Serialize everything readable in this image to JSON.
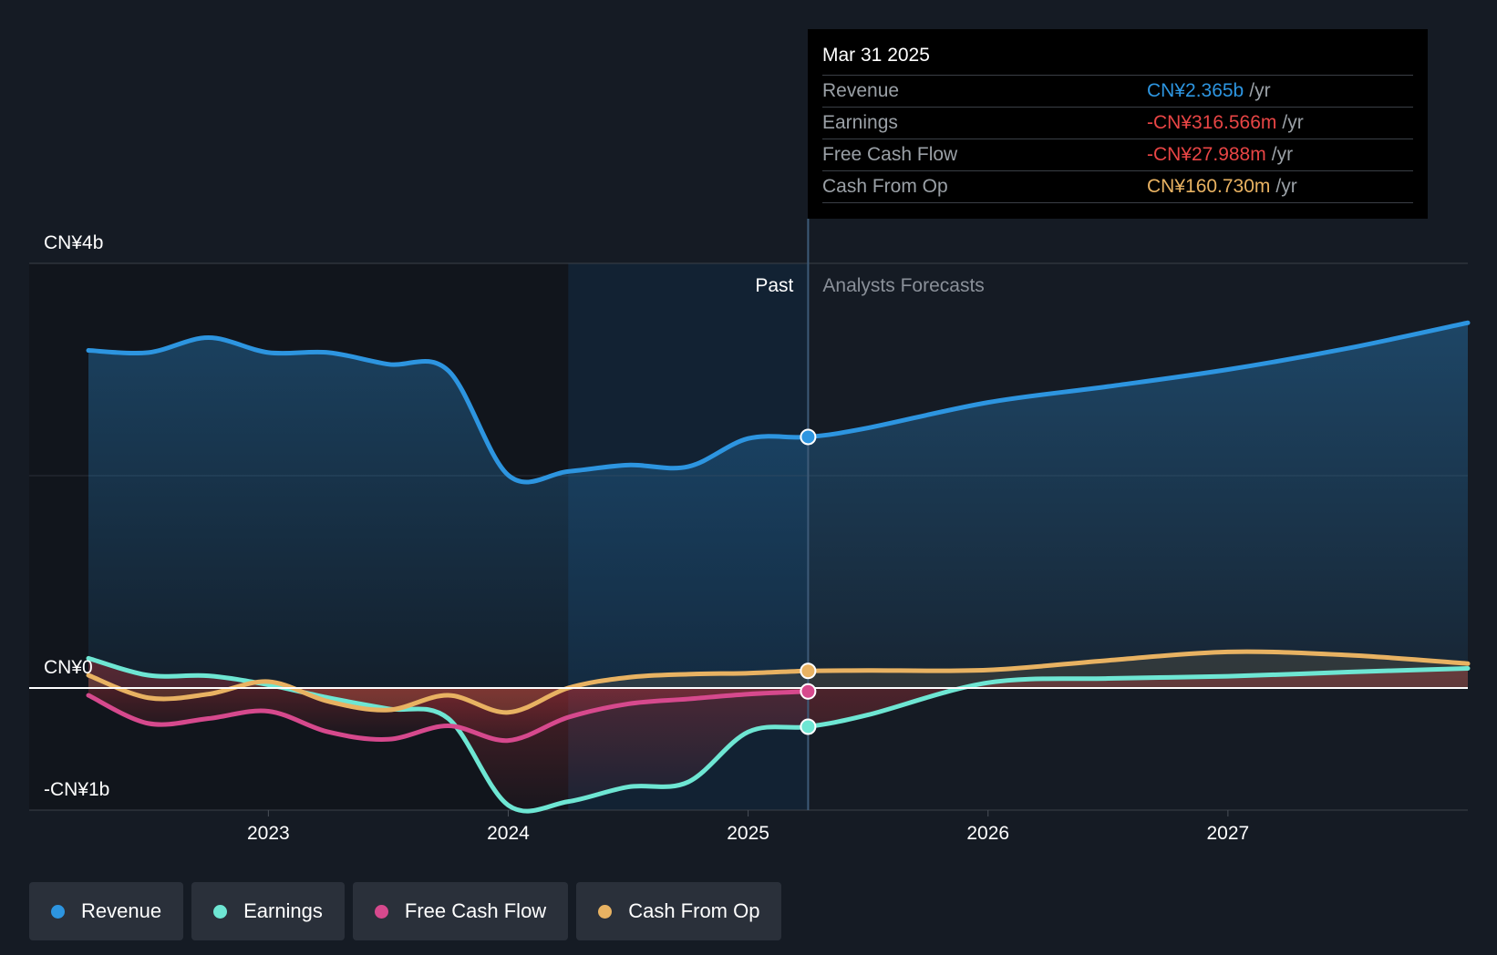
{
  "tooltip": {
    "date": "Mar 31 2025",
    "rows": [
      {
        "label": "Revenue",
        "value": "CN¥2.365b",
        "unit": "/yr",
        "color": "#2d95e0"
      },
      {
        "label": "Earnings",
        "value": "-CN¥316.566m",
        "unit": "/yr",
        "color": "#e84545"
      },
      {
        "label": "Free Cash Flow",
        "value": "-CN¥27.988m",
        "unit": "/yr",
        "color": "#e84545"
      },
      {
        "label": "Cash From Op",
        "value": "CN¥160.730m",
        "unit": "/yr",
        "color": "#e8b262"
      }
    ]
  },
  "past_label": "Past",
  "forecast_label": "Analysts Forecasts",
  "legend": [
    {
      "label": "Revenue",
      "color": "#2d95e0"
    },
    {
      "label": "Earnings",
      "color": "#6ee6d3"
    },
    {
      "label": "Free Cash Flow",
      "color": "#d6498d"
    },
    {
      "label": "Cash From Op",
      "color": "#e8b262"
    }
  ],
  "chart_data": {
    "type": "line",
    "y_tick_labels": [
      "CN¥4b",
      "CN¥0",
      "-CN¥1b"
    ],
    "y_ticks": [
      4000,
      0,
      -1000
    ],
    "ylim": [
      -1000,
      4000
    ],
    "x_tick_labels": [
      "2023",
      "2024",
      "2025",
      "2026",
      "2027"
    ],
    "x_ticks": [
      2023,
      2024,
      2025,
      2026,
      2027
    ],
    "xlim": [
      2022.25,
      2028.0
    ],
    "past_end": 2025.25,
    "highlight_start": 2024.25,
    "series": [
      {
        "name": "Revenue",
        "color": "#2d95e0",
        "points": [
          [
            2022.25,
            3180
          ],
          [
            2022.5,
            3160
          ],
          [
            2022.75,
            3300
          ],
          [
            2023.0,
            3160
          ],
          [
            2023.25,
            3160
          ],
          [
            2023.5,
            3050
          ],
          [
            2023.75,
            2990
          ],
          [
            2024.0,
            2005
          ],
          [
            2024.25,
            2040
          ],
          [
            2024.5,
            2100
          ],
          [
            2024.75,
            2085
          ],
          [
            2025.0,
            2350
          ],
          [
            2025.25,
            2365
          ],
          [
            2025.5,
            2450
          ],
          [
            2026.0,
            2690
          ],
          [
            2026.5,
            2840
          ],
          [
            2027.0,
            3000
          ],
          [
            2027.5,
            3200
          ],
          [
            2028.0,
            3440
          ]
        ]
      },
      {
        "name": "Earnings",
        "color": "#6ee6d3",
        "points": [
          [
            2022.25,
            280
          ],
          [
            2022.5,
            120
          ],
          [
            2022.75,
            115
          ],
          [
            2023.0,
            30
          ],
          [
            2023.25,
            -80
          ],
          [
            2023.5,
            -170
          ],
          [
            2023.75,
            -250
          ],
          [
            2024.0,
            -960
          ],
          [
            2024.25,
            -930
          ],
          [
            2024.5,
            -810
          ],
          [
            2024.75,
            -770
          ],
          [
            2025.0,
            -360
          ],
          [
            2025.25,
            -317
          ],
          [
            2025.5,
            -220
          ],
          [
            2026.0,
            50
          ],
          [
            2026.5,
            90
          ],
          [
            2027.0,
            110
          ],
          [
            2027.5,
            150
          ],
          [
            2028.0,
            185
          ]
        ]
      },
      {
        "name": "Free Cash Flow",
        "color": "#d6498d",
        "points": [
          [
            2022.25,
            -60
          ],
          [
            2022.5,
            -290
          ],
          [
            2022.75,
            -250
          ],
          [
            2023.0,
            -190
          ],
          [
            2023.25,
            -360
          ],
          [
            2023.5,
            -420
          ],
          [
            2023.75,
            -310
          ],
          [
            2024.0,
            -430
          ],
          [
            2024.25,
            -240
          ],
          [
            2024.5,
            -130
          ],
          [
            2024.75,
            -90
          ],
          [
            2025.0,
            -50
          ],
          [
            2025.25,
            -28
          ]
        ]
      },
      {
        "name": "Cash From Op",
        "color": "#e8b262",
        "points": [
          [
            2022.25,
            120
          ],
          [
            2022.5,
            -80
          ],
          [
            2022.75,
            -50
          ],
          [
            2023.0,
            60
          ],
          [
            2023.25,
            -110
          ],
          [
            2023.5,
            -180
          ],
          [
            2023.75,
            -60
          ],
          [
            2024.0,
            -200
          ],
          [
            2024.25,
            0
          ],
          [
            2024.5,
            100
          ],
          [
            2024.75,
            130
          ],
          [
            2025.0,
            140
          ],
          [
            2025.25,
            161
          ],
          [
            2025.5,
            165
          ],
          [
            2026.0,
            170
          ],
          [
            2026.5,
            260
          ],
          [
            2027.0,
            340
          ],
          [
            2027.5,
            310
          ],
          [
            2028.0,
            230
          ]
        ]
      }
    ]
  }
}
